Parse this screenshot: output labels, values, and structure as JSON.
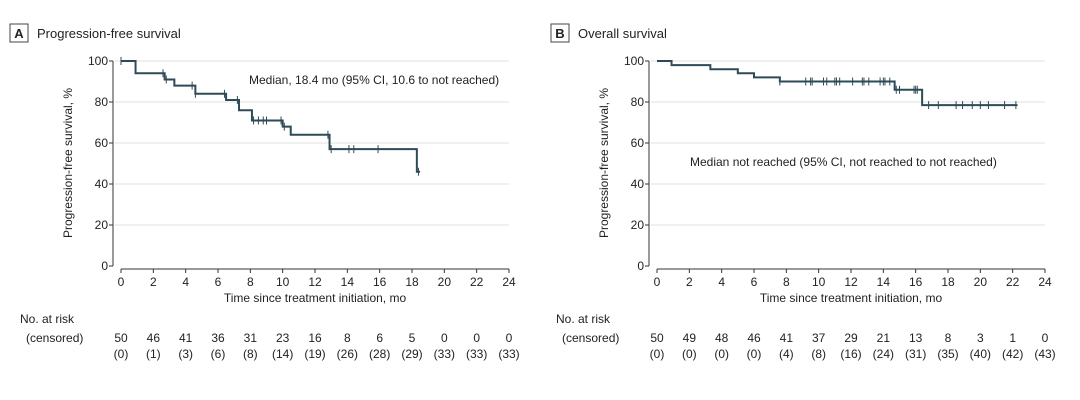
{
  "chart_data": [
    {
      "type": "line",
      "panel_letter": "A",
      "title": "Progression-free survival",
      "xlabel": "Time since treatment initiation, mo",
      "ylabel": "Progression-free survival, %",
      "xlim": [
        0,
        24
      ],
      "ylim": [
        0,
        100
      ],
      "xticks": [
        0,
        2,
        4,
        6,
        8,
        10,
        12,
        14,
        16,
        18,
        20,
        22,
        24
      ],
      "yticks": [
        0,
        20,
        40,
        60,
        80,
        100
      ],
      "grid": "horizontal",
      "annotation": "Median, 18.4 mo (95% CI, 10.6 to not reached)",
      "color": "#2d4b57",
      "steps": [
        [
          0,
          100
        ],
        [
          0.9,
          94
        ],
        [
          2.7,
          91
        ],
        [
          3.3,
          88
        ],
        [
          4.6,
          84
        ],
        [
          6.5,
          81
        ],
        [
          7.3,
          76
        ],
        [
          8.1,
          71
        ],
        [
          10.0,
          68
        ],
        [
          10.5,
          64
        ],
        [
          12.9,
          57
        ],
        [
          18.3,
          46
        ],
        [
          18.5,
          46
        ]
      ],
      "censored": [
        0,
        2.6,
        2.8,
        4.4,
        4.6,
        6.4,
        7.2,
        8.2,
        8.5,
        8.8,
        9.0,
        9.9,
        10.1,
        12.8,
        13.0,
        14.1,
        14.4,
        15.9,
        18.4
      ],
      "risk_table": {
        "header": "No. at risk",
        "subheader": "(censored)",
        "at_risk": [
          "50",
          "46",
          "41",
          "36",
          "31",
          "23",
          "16",
          "8",
          "6",
          "5",
          "0",
          "0",
          "0"
        ],
        "censored": [
          "(0)",
          "(1)",
          "(3)",
          "(6)",
          "(8)",
          "(14)",
          "(19)",
          "(26)",
          "(28)",
          "(29)",
          "(33)",
          "(33)",
          "(33)"
        ]
      }
    },
    {
      "type": "line",
      "panel_letter": "B",
      "title": "Overall survival",
      "xlabel": "Time since treatment initiation, mo",
      "ylabel": "Progression-free survival, %",
      "xlim": [
        0,
        24
      ],
      "ylim": [
        0,
        100
      ],
      "xticks": [
        0,
        2,
        4,
        6,
        8,
        10,
        12,
        14,
        16,
        18,
        20,
        22,
        24
      ],
      "yticks": [
        0,
        20,
        40,
        60,
        80,
        100
      ],
      "grid": "horizontal",
      "annotation": "Median not reached (95% CI, not reached to not reached)",
      "color": "#2d4b57",
      "steps": [
        [
          0,
          100
        ],
        [
          0.9,
          98
        ],
        [
          3.3,
          96
        ],
        [
          5.0,
          94
        ],
        [
          6.0,
          92
        ],
        [
          7.6,
          90
        ],
        [
          14.7,
          86
        ],
        [
          16.4,
          78.5
        ],
        [
          22.3,
          78.5
        ]
      ],
      "censored": [
        7.6,
        9.2,
        9.5,
        9.6,
        10.3,
        10.5,
        11.0,
        11.1,
        11.3,
        12.1,
        12.7,
        12.8,
        13.1,
        13.8,
        14.0,
        14.1,
        14.4,
        14.8,
        15.0,
        15.9,
        16.0,
        16.1,
        16.8,
        17.4,
        18.5,
        18.9,
        19.5,
        20.0,
        20.5,
        21.5,
        22.2
      ],
      "risk_table": {
        "header": "No. at risk",
        "subheader": "(censored)",
        "at_risk": [
          "50",
          "49",
          "48",
          "46",
          "41",
          "37",
          "29",
          "21",
          "13",
          "8",
          "3",
          "1",
          "0"
        ],
        "censored": [
          "(0)",
          "(0)",
          "(0)",
          "(0)",
          "(4)",
          "(8)",
          "(16)",
          "(24)",
          "(31)",
          "(35)",
          "(40)",
          "(42)",
          "(43)"
        ]
      }
    }
  ]
}
